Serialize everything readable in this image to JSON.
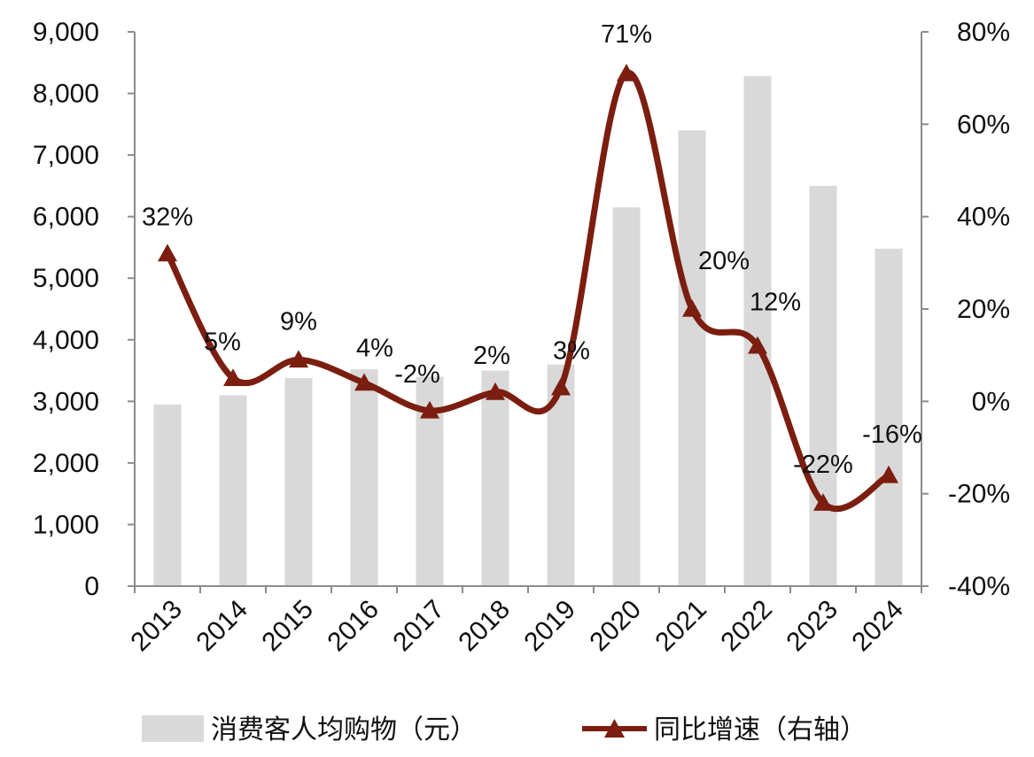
{
  "chart_data": {
    "type": "bar+line",
    "categories": [
      "2013",
      "2014",
      "2015",
      "2016",
      "2017",
      "2018",
      "2019",
      "2020",
      "2021",
      "2022",
      "2023",
      "2024"
    ],
    "series": [
      {
        "name": "消费客人均购物（元）",
        "kind": "bar",
        "axis": "left",
        "color": "#d9d9d9",
        "values": [
          2950,
          3100,
          3380,
          3520,
          3400,
          3500,
          3600,
          6150,
          7400,
          8280,
          6500,
          5480
        ]
      },
      {
        "name": "同比增速（右轴）",
        "kind": "line",
        "axis": "right",
        "color": "#7b1e10",
        "marker": "triangle",
        "values": [
          32,
          5,
          9,
          4,
          -2,
          2,
          3,
          71,
          20,
          12,
          -22,
          -16
        ],
        "labels": [
          "32%",
          "5%",
          "9%",
          "4%",
          "-2%",
          "2%",
          "3%",
          "71%",
          "20%",
          "12%",
          "-22%",
          "-16%"
        ]
      }
    ],
    "y_left": {
      "ylim": [
        0,
        9000
      ],
      "ticks": [
        0,
        1000,
        2000,
        3000,
        4000,
        5000,
        6000,
        7000,
        8000,
        9000
      ],
      "tick_labels": [
        "0",
        "1,000",
        "2,000",
        "3,000",
        "4,000",
        "5,000",
        "6,000",
        "7,000",
        "8,000",
        "9,000"
      ]
    },
    "y_right": {
      "ylim": [
        -40,
        80
      ],
      "ticks": [
        -40,
        -20,
        0,
        20,
        40,
        60,
        80
      ],
      "tick_labels": [
        "-40%",
        "-20%",
        "0%",
        "20%",
        "40%",
        "60%",
        "80%"
      ]
    },
    "legend": {
      "placement": "bottom",
      "bar_label": "消费客人均购物（元）",
      "line_label": "同比增速（右轴）"
    },
    "grid": false
  }
}
